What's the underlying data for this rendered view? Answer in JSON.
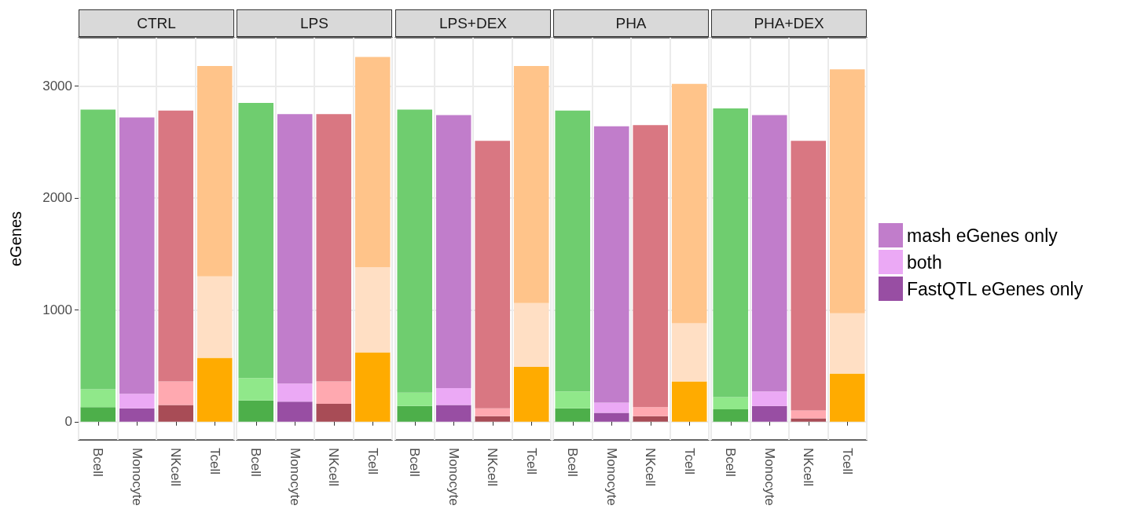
{
  "chart_data": [
    {
      "type": "bar",
      "title": "CTRL",
      "ylabel": "eGenes",
      "categories": [
        "Bcell",
        "Monocyte",
        "NKcell",
        "Tcell"
      ],
      "stacked": true,
      "ylim": [
        -163,
        3432
      ],
      "yticks": [
        0,
        1000,
        2000,
        3000
      ],
      "grid": true,
      "legend": false,
      "series": [
        {
          "color": "#984ea3",
          "colors": [
            "#4daf4a",
            "#984ea3",
            "#a84c56",
            "#ffab00"
          ],
          "values": [
            130,
            120,
            150,
            570
          ]
        },
        {
          "color": "#eba9f5",
          "colors": [
            "#90e88a",
            "#eba9f5",
            "#ffa9b0",
            "#ffdfc4"
          ],
          "values": [
            160,
            130,
            210,
            730
          ]
        },
        {
          "color": "#c17dcb",
          "colors": [
            "#6fcd6f",
            "#c17dcb",
            "#d97782",
            "#ffc48a"
          ],
          "values": [
            2500,
            2470,
            2420,
            1880
          ]
        }
      ]
    },
    {
      "type": "bar",
      "title": "LPS",
      "categories": [
        "Bcell",
        "Monocyte",
        "NKcell",
        "Tcell"
      ],
      "stacked": true,
      "ylim": [
        -163,
        3432
      ],
      "yticks": [
        0,
        1000,
        2000,
        3000
      ],
      "grid": true,
      "legend": false,
      "tick_labels": "x",
      "series": [
        {
          "color": "#984ea3",
          "colors": [
            "#4daf4a",
            "#984ea3",
            "#a84c56",
            "#ffab00"
          ],
          "values": [
            190,
            180,
            160,
            620
          ]
        },
        {
          "color": "#eba9f5",
          "colors": [
            "#90e88a",
            "#eba9f5",
            "#ffa9b0",
            "#ffdfc4"
          ],
          "values": [
            200,
            160,
            200,
            760
          ]
        },
        {
          "color": "#c17dcb",
          "colors": [
            "#6fcd6f",
            "#c17dcb",
            "#d97782",
            "#ffc48a"
          ],
          "values": [
            2460,
            2410,
            2390,
            1880
          ]
        }
      ]
    },
    {
      "type": "bar",
      "title": "LPS+DEX",
      "categories": [
        "Bcell",
        "Monocyte",
        "NKcell",
        "Tcell"
      ],
      "stacked": true,
      "ylim": [
        -163,
        3432
      ],
      "yticks": [
        0,
        1000,
        2000,
        3000
      ],
      "grid": true,
      "legend": false,
      "tick_labels": "x",
      "series": [
        {
          "color": "#984ea3",
          "colors": [
            "#4daf4a",
            "#984ea3",
            "#a84c56",
            "#ffab00"
          ],
          "values": [
            140,
            150,
            50,
            490
          ]
        },
        {
          "color": "#eba9f5",
          "colors": [
            "#90e88a",
            "#eba9f5",
            "#ffa9b0",
            "#ffdfc4"
          ],
          "values": [
            120,
            150,
            70,
            570
          ]
        },
        {
          "color": "#c17dcb",
          "colors": [
            "#6fcd6f",
            "#c17dcb",
            "#d97782",
            "#ffc48a"
          ],
          "values": [
            2530,
            2440,
            2390,
            2120
          ]
        }
      ]
    },
    {
      "type": "bar",
      "title": "PHA",
      "categories": [
        "Bcell",
        "Monocyte",
        "NKcell",
        "Tcell"
      ],
      "stacked": true,
      "ylim": [
        -163,
        3432
      ],
      "yticks": [
        0,
        1000,
        2000,
        3000
      ],
      "grid": true,
      "legend": false,
      "tick_labels": "x",
      "series": [
        {
          "color": "#984ea3",
          "colors": [
            "#4daf4a",
            "#984ea3",
            "#a84c56",
            "#ffab00"
          ],
          "values": [
            120,
            80,
            50,
            360
          ]
        },
        {
          "color": "#eba9f5",
          "colors": [
            "#90e88a",
            "#eba9f5",
            "#ffa9b0",
            "#ffdfc4"
          ],
          "values": [
            150,
            90,
            80,
            520
          ]
        },
        {
          "color": "#c17dcb",
          "colors": [
            "#6fcd6f",
            "#c17dcb",
            "#d97782",
            "#ffc48a"
          ],
          "values": [
            2510,
            2470,
            2520,
            2140
          ]
        }
      ]
    },
    {
      "type": "bar",
      "title": "PHA+DEX",
      "categories": [
        "Bcell",
        "Monocyte",
        "NKcell",
        "Tcell"
      ],
      "stacked": true,
      "ylim": [
        -163,
        3432
      ],
      "yticks": [
        0,
        1000,
        2000,
        3000
      ],
      "grid": true,
      "legend": "right",
      "tick_labels": "x",
      "series": [
        {
          "name": "FastQTL eGenes only",
          "color": "#984ea3",
          "colors": [
            "#4daf4a",
            "#984ea3",
            "#a84c56",
            "#ffab00"
          ],
          "values": [
            110,
            140,
            30,
            430
          ]
        },
        {
          "name": "both",
          "color": "#eba9f5",
          "colors": [
            "#90e88a",
            "#eba9f5",
            "#ffa9b0",
            "#ffdfc4"
          ],
          "values": [
            110,
            130,
            70,
            540
          ]
        },
        {
          "name": "mash eGenes only",
          "color": "#c17dcb",
          "colors": [
            "#6fcd6f",
            "#c17dcb",
            "#d97782",
            "#ffc48a"
          ],
          "values": [
            2580,
            2470,
            2410,
            2180
          ]
        }
      ]
    }
  ]
}
